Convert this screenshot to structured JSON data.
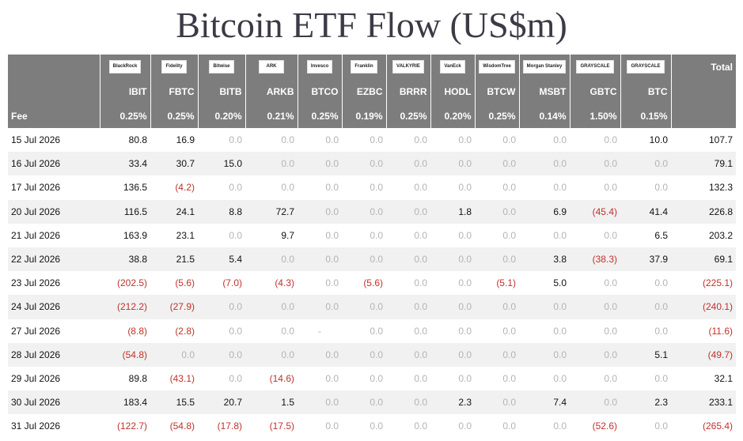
{
  "title": "Bitcoin ETF Flow (US$m)",
  "issuers": [
    {
      "logo": "BlackRock",
      "ticker": "IBIT",
      "fee": "0.25%"
    },
    {
      "logo": "Fidelity",
      "ticker": "FBTC",
      "fee": "0.25%"
    },
    {
      "logo": "Bitwise",
      "ticker": "BITB",
      "fee": "0.20%"
    },
    {
      "logo": "ARK",
      "ticker": "ARKB",
      "fee": "0.21%"
    },
    {
      "logo": "Invesco",
      "ticker": "BTCO",
      "fee": "0.25%"
    },
    {
      "logo": "Franklin",
      "ticker": "EZBC",
      "fee": "0.19%"
    },
    {
      "logo": "VALKYRIE",
      "ticker": "BRRR",
      "fee": "0.25%"
    },
    {
      "logo": "VanEck",
      "ticker": "HODL",
      "fee": "0.20%"
    },
    {
      "logo": "WisdomTree",
      "ticker": "BTCW",
      "fee": "0.25%"
    },
    {
      "logo": "Morgan Stanley",
      "ticker": "MSBT",
      "fee": "0.14%"
    },
    {
      "logo": "GRAYSCALE",
      "ticker": "GBTC",
      "fee": "1.50%"
    },
    {
      "logo": "GRAYSCALE",
      "ticker": "BTC",
      "fee": "0.15%"
    }
  ],
  "total_label": "Total",
  "fee_label": "Fee",
  "rows": [
    {
      "date": "15 Jul 2026",
      "values": [
        "80.8",
        "16.9",
        "0.0",
        "0.0",
        "0.0",
        "0.0",
        "0.0",
        "0.0",
        "0.0",
        "0.0",
        "0.0",
        "10.0"
      ],
      "total": "107.7"
    },
    {
      "date": "16 Jul 2026",
      "values": [
        "33.4",
        "30.7",
        "15.0",
        "0.0",
        "0.0",
        "0.0",
        "0.0",
        "0.0",
        "0.0",
        "0.0",
        "0.0",
        "0.0"
      ],
      "total": "79.1"
    },
    {
      "date": "17 Jul 2026",
      "values": [
        "136.5",
        "(4.2)",
        "0.0",
        "0.0",
        "0.0",
        "0.0",
        "0.0",
        "0.0",
        "0.0",
        "0.0",
        "0.0",
        "0.0"
      ],
      "total": "132.3"
    },
    {
      "date": "20 Jul 2026",
      "values": [
        "116.5",
        "24.1",
        "8.8",
        "72.7",
        "0.0",
        "0.0",
        "0.0",
        "1.8",
        "0.0",
        "6.9",
        "(45.4)",
        "41.4"
      ],
      "total": "226.8"
    },
    {
      "date": "21 Jul 2026",
      "values": [
        "163.9",
        "23.1",
        "0.0",
        "9.7",
        "0.0",
        "0.0",
        "0.0",
        "0.0",
        "0.0",
        "0.0",
        "0.0",
        "6.5"
      ],
      "total": "203.2"
    },
    {
      "date": "22 Jul 2026",
      "values": [
        "38.8",
        "21.5",
        "5.4",
        "0.0",
        "0.0",
        "0.0",
        "0.0",
        "0.0",
        "0.0",
        "3.8",
        "(38.3)",
        "37.9"
      ],
      "total": "69.1"
    },
    {
      "date": "23 Jul 2026",
      "values": [
        "(202.5)",
        "(5.6)",
        "(7.0)",
        "(4.3)",
        "0.0",
        "(5.6)",
        "0.0",
        "0.0",
        "(5.1)",
        "5.0",
        "0.0",
        "0.0"
      ],
      "total": "(225.1)"
    },
    {
      "date": "24 Jul 2026",
      "values": [
        "(212.2)",
        "(27.9)",
        "0.0",
        "0.0",
        "0.0",
        "0.0",
        "0.0",
        "0.0",
        "0.0",
        "0.0",
        "0.0",
        "0.0"
      ],
      "total": "(240.1)"
    },
    {
      "date": "27 Jul 2026",
      "values": [
        "(8.8)",
        "(2.8)",
        "0.0",
        "0.0",
        "-",
        "0.0",
        "0.0",
        "0.0",
        "0.0",
        "0.0",
        "0.0",
        "0.0"
      ],
      "total": "(11.6)"
    },
    {
      "date": "28 Jul 2026",
      "values": [
        "(54.8)",
        "0.0",
        "0.0",
        "0.0",
        "0.0",
        "0.0",
        "0.0",
        "0.0",
        "0.0",
        "0.0",
        "0.0",
        "5.1"
      ],
      "total": "(49.7)"
    },
    {
      "date": "29 Jul 2026",
      "values": [
        "89.8",
        "(43.1)",
        "0.0",
        "(14.6)",
        "0.0",
        "0.0",
        "0.0",
        "0.0",
        "0.0",
        "0.0",
        "0.0",
        "0.0"
      ],
      "total": "32.1"
    },
    {
      "date": "30 Jul 2026",
      "values": [
        "183.4",
        "15.5",
        "20.7",
        "1.5",
        "0.0",
        "0.0",
        "0.0",
        "2.3",
        "0.0",
        "7.4",
        "0.0",
        "2.3"
      ],
      "total": "233.1"
    },
    {
      "date": "31 Jul 2026",
      "values": [
        "(122.7)",
        "(54.8)",
        "(17.8)",
        "(17.5)",
        "0.0",
        "0.0",
        "0.0",
        "0.0",
        "0.0",
        "0.0",
        "(52.6)",
        "0.0"
      ],
      "total": "(265.4)"
    }
  ]
}
